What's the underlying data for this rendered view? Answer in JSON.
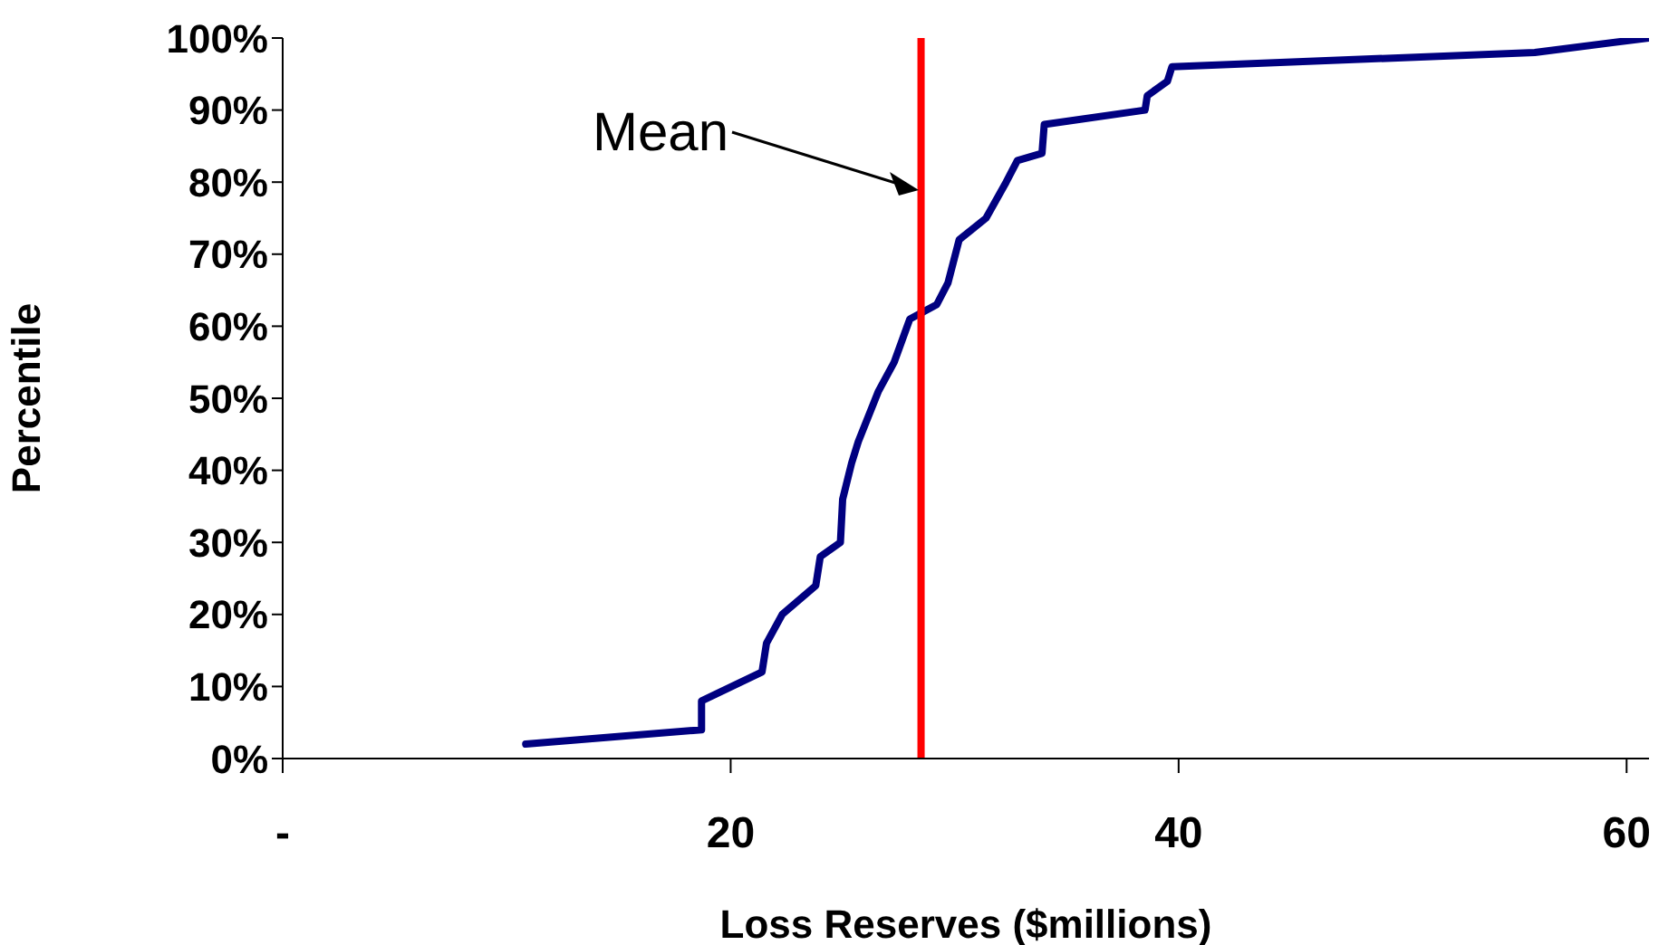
{
  "chart_data": {
    "type": "line",
    "xlabel": "Loss Reserves ($millions)",
    "ylabel": "Percentile",
    "x": [
      10.85,
      18.7,
      18.7,
      21.4,
      21.6,
      22.3,
      23.8,
      24.0,
      24.9,
      25.0,
      25.4,
      25.7,
      26.6,
      27.3,
      28.0,
      29.2,
      29.7,
      30.2,
      31.4,
      32.3,
      32.8,
      33.9,
      34.0,
      38.5,
      38.6,
      39.5,
      39.7,
      55.9,
      61
    ],
    "series": [
      {
        "color": "#000080",
        "values": [
          2,
          4,
          8,
          12,
          16,
          20,
          24,
          28,
          30,
          36,
          41,
          44,
          51,
          55,
          61,
          63,
          66,
          72,
          75,
          80,
          83,
          84,
          88,
          90,
          92,
          94,
          96,
          98,
          100
        ]
      }
    ],
    "xlim": [
      0,
      61
    ],
    "xticks": [
      {
        "value": 0,
        "label": "-"
      },
      20,
      40,
      60
    ],
    "ylim": [
      0,
      100
    ],
    "yticks": [
      {
        "value": 0,
        "label": "0%"
      },
      {
        "value": 10,
        "label": "10%"
      },
      {
        "value": 20,
        "label": "20%"
      },
      {
        "value": 30,
        "label": "30%"
      },
      {
        "value": 40,
        "label": "40%"
      },
      {
        "value": 50,
        "label": "50%"
      },
      {
        "value": 60,
        "label": "60%"
      },
      {
        "value": 70,
        "label": "70%"
      },
      {
        "value": 80,
        "label": "80%"
      },
      {
        "value": 90,
        "label": "90%"
      },
      {
        "value": 100,
        "label": "100%"
      }
    ],
    "ref_lines": [
      {
        "axis": "x",
        "value": 28.5,
        "color": "#ff0000"
      }
    ],
    "annotations": [
      "Mean"
    ],
    "grid": false,
    "marker": "none",
    "line_style": "solid"
  }
}
